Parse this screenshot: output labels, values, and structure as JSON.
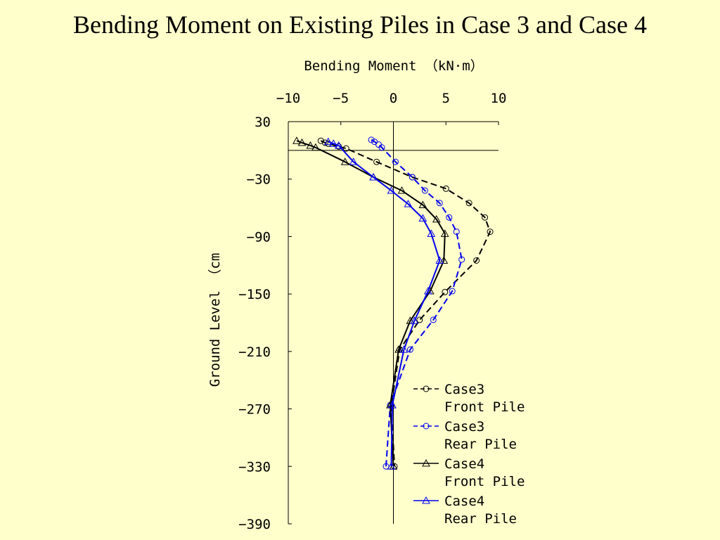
{
  "page": {
    "title": "Bending Moment on Existing Piles in Case 3 and Case 4"
  },
  "chart_data": {
    "type": "line",
    "title": "",
    "xlabel": "Bending Moment （kN·m）",
    "ylabel": "Ground Level （cm",
    "xlim": [
      -10,
      10
    ],
    "ylim": [
      -390,
      30
    ],
    "x_ticks": [
      -10,
      -5,
      0,
      5,
      10
    ],
    "y_ticks": [
      30,
      -30,
      -90,
      -150,
      -210,
      -270,
      -330,
      -390
    ],
    "ground_line_y": 0,
    "grid": false,
    "legend": "lower-right",
    "series": [
      {
        "name": "Case3 Front Pile",
        "legend_lines": [
          "Case3",
          "Front Pile"
        ],
        "color": "#000000",
        "dash": true,
        "marker": "circle",
        "points": [
          [
            -6.9,
            10
          ],
          [
            -6.5,
            8
          ],
          [
            -6.2,
            7
          ],
          [
            -5.2,
            4
          ],
          [
            -4.5,
            2
          ],
          [
            -1.6,
            -12
          ],
          [
            1.8,
            -28
          ],
          [
            5.0,
            -40
          ],
          [
            7.2,
            -55
          ],
          [
            8.7,
            -70
          ],
          [
            9.2,
            -85
          ],
          [
            7.9,
            -115
          ],
          [
            4.9,
            -148
          ],
          [
            2.5,
            -177
          ],
          [
            0.6,
            -208
          ],
          [
            -0.2,
            -266
          ],
          [
            0.1,
            -330
          ]
        ]
      },
      {
        "name": "Case3 Rear Pile",
        "legend_lines": [
          "Case3",
          "Rear Pile"
        ],
        "color": "#0000ee",
        "dash": true,
        "marker": "circle",
        "points": [
          [
            -2.1,
            11
          ],
          [
            -1.8,
            9
          ],
          [
            -1.4,
            6
          ],
          [
            -1.1,
            3
          ],
          [
            0.2,
            -12
          ],
          [
            1.8,
            -28
          ],
          [
            3.0,
            -42
          ],
          [
            4.4,
            -55
          ],
          [
            5.3,
            -70
          ],
          [
            6.0,
            -85
          ],
          [
            6.5,
            -114
          ],
          [
            5.6,
            -147
          ],
          [
            3.8,
            -177
          ],
          [
            1.6,
            -208
          ],
          [
            -0.3,
            -266
          ],
          [
            -0.7,
            -330
          ]
        ]
      },
      {
        "name": "Case4 Front Pile",
        "legend_lines": [
          "Case4",
          "Front Pile"
        ],
        "color": "#000000",
        "dash": false,
        "marker": "triangle",
        "points": [
          [
            -9.2,
            10
          ],
          [
            -8.7,
            8
          ],
          [
            -7.9,
            5
          ],
          [
            -7.4,
            3
          ],
          [
            -4.6,
            -12
          ],
          [
            -1.9,
            -28
          ],
          [
            0.8,
            -42
          ],
          [
            2.8,
            -57
          ],
          [
            4.1,
            -72
          ],
          [
            4.9,
            -87
          ],
          [
            4.8,
            -115
          ],
          [
            3.5,
            -147
          ],
          [
            1.6,
            -178
          ],
          [
            0.5,
            -208
          ],
          [
            -0.3,
            -266
          ],
          [
            0.0,
            -330
          ]
        ]
      },
      {
        "name": "Case4 Rear Pile",
        "legend_lines": [
          "Case4",
          "Rear Pile"
        ],
        "color": "#0000ee",
        "dash": false,
        "marker": "triangle",
        "points": [
          [
            -6.2,
            9
          ],
          [
            -5.7,
            7
          ],
          [
            -5.2,
            5
          ],
          [
            -3.8,
            -12
          ],
          [
            -1.9,
            -28
          ],
          [
            -0.2,
            -42
          ],
          [
            1.4,
            -56
          ],
          [
            2.8,
            -71
          ],
          [
            3.6,
            -87
          ],
          [
            4.4,
            -115
          ],
          [
            3.3,
            -147
          ],
          [
            2.0,
            -178
          ],
          [
            1.0,
            -208
          ],
          [
            -0.1,
            -266
          ],
          [
            -0.2,
            -330
          ]
        ]
      }
    ]
  }
}
